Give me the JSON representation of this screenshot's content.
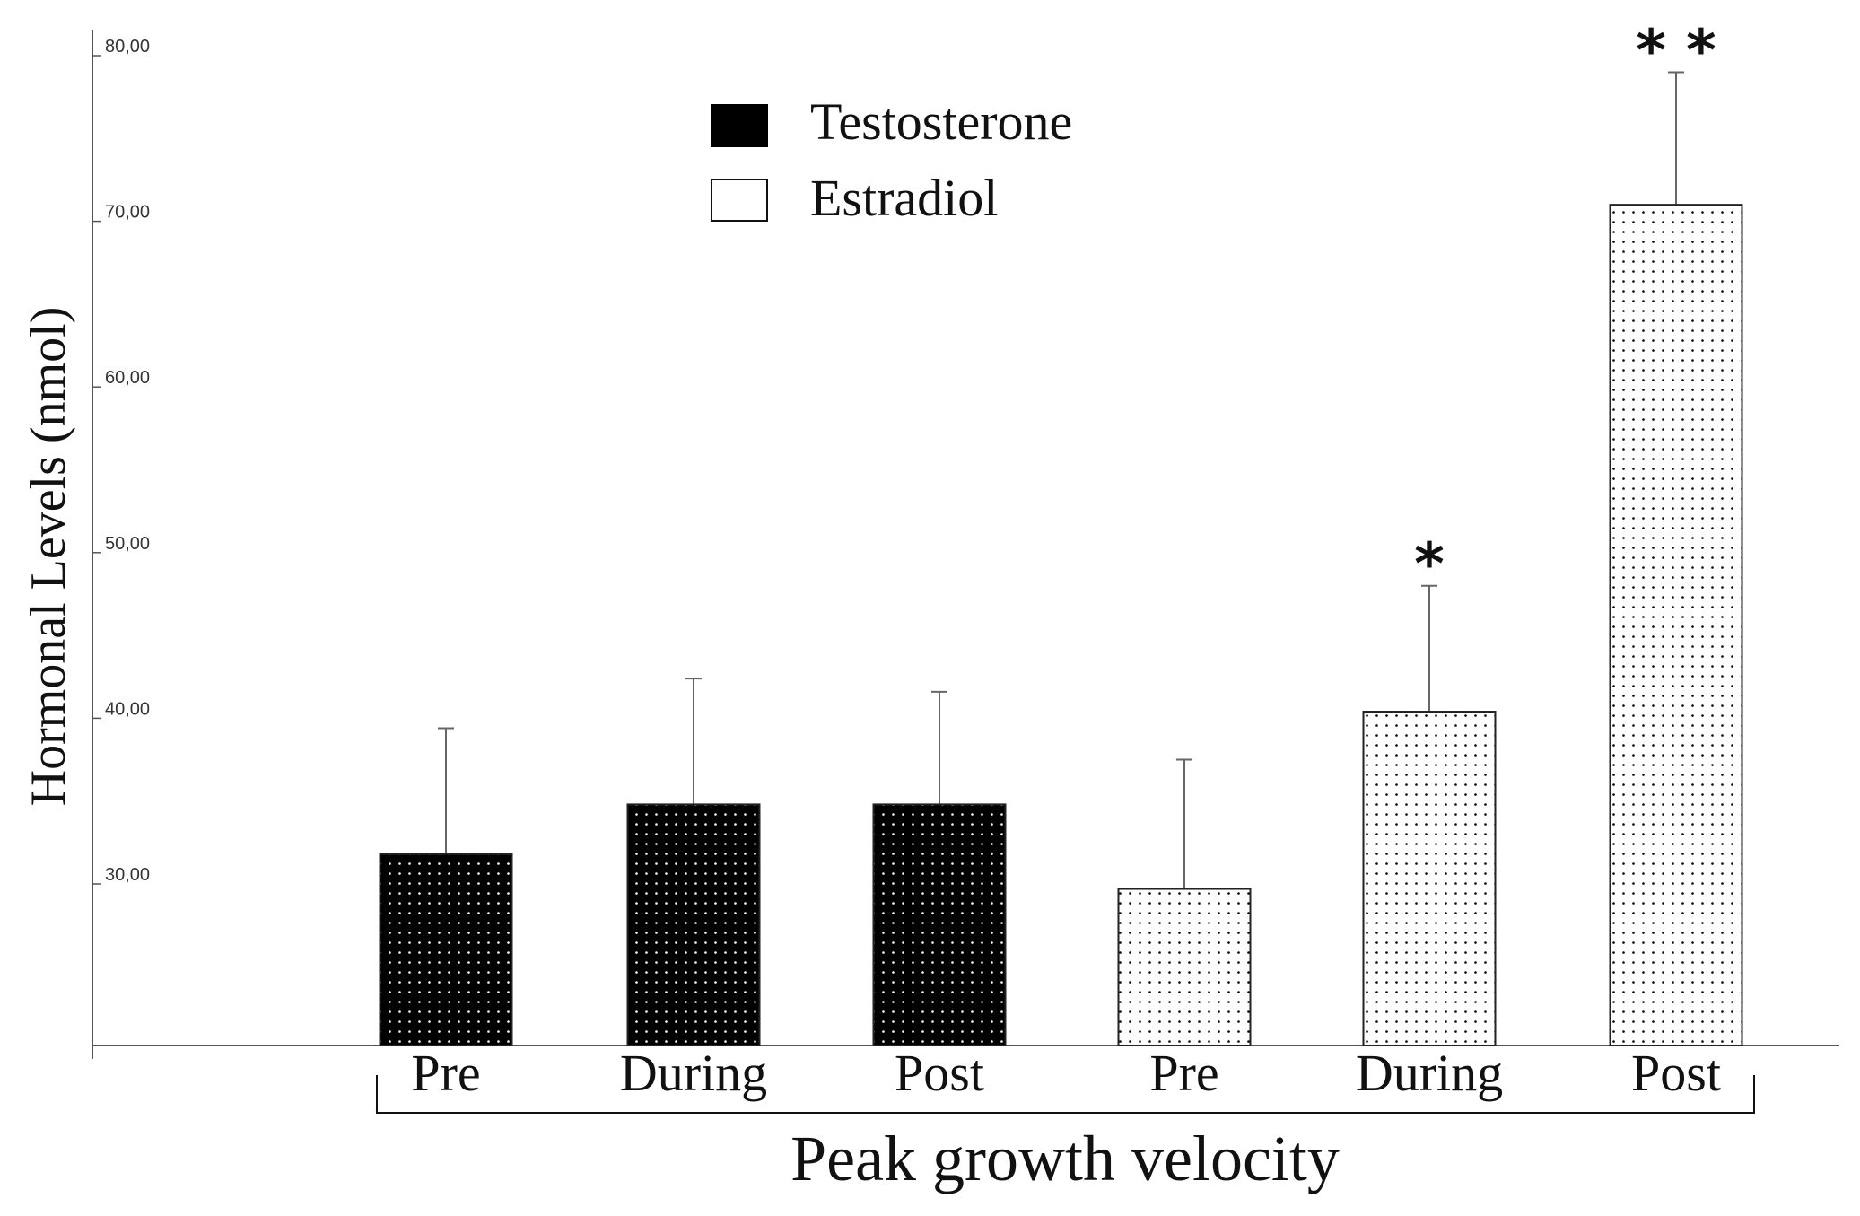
{
  "chart_data": {
    "type": "bar",
    "title": "",
    "ylabel": "Hormonal Levels (nmol)",
    "xlabel": "Peak growth velocity",
    "ylim": [
      20,
      81
    ],
    "yticks": [
      "30,00",
      "40,00",
      "50,00",
      "60,00",
      "70,00",
      "80,00"
    ],
    "ytick_values": [
      30,
      40,
      50,
      60,
      70,
      80
    ],
    "grid": false,
    "legend_position": "top-center",
    "legend": [
      {
        "name": "Testosterone",
        "color": "#000000",
        "pattern": "black-with-white-dots"
      },
      {
        "name": "Estradiol",
        "color": "#ffffff",
        "pattern": "white-with-black-dots"
      }
    ],
    "bars": [
      {
        "series": "Testosterone",
        "category": "Pre",
        "value": 31.8,
        "error": 7.6,
        "significance": ""
      },
      {
        "series": "Testosterone",
        "category": "During",
        "value": 34.8,
        "error": 7.6,
        "significance": ""
      },
      {
        "series": "Testosterone",
        "category": "Post",
        "value": 34.8,
        "error": 6.8,
        "significance": ""
      },
      {
        "series": "Estradiol",
        "category": "Pre",
        "value": 29.7,
        "error": 7.8,
        "significance": ""
      },
      {
        "series": "Estradiol",
        "category": "During",
        "value": 40.4,
        "error": 7.6,
        "significance": "*"
      },
      {
        "series": "Estradiol",
        "category": "Post",
        "value": 71.0,
        "error": 8.0,
        "significance": "* *"
      }
    ]
  }
}
